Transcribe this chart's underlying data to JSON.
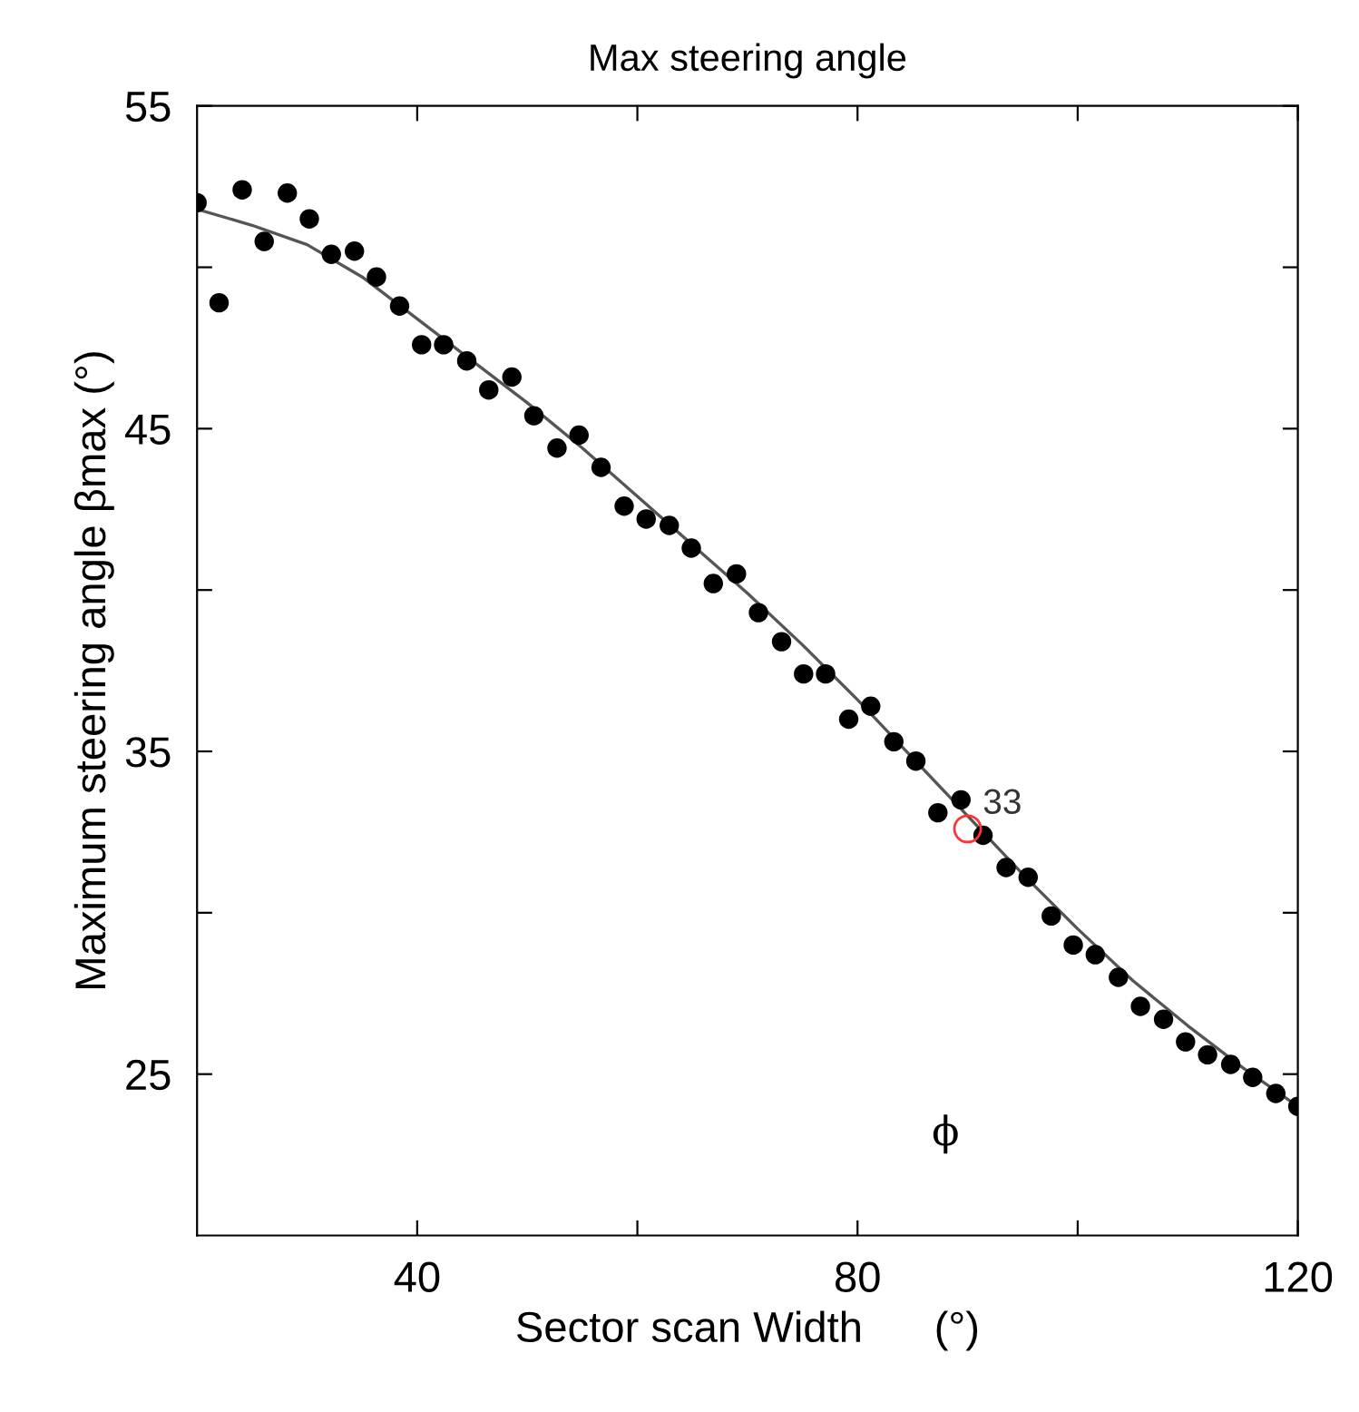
{
  "chart_data": {
    "type": "scatter",
    "title": "Max steering angle",
    "xlabel": "Sector scan Width      (°)",
    "ylabel": "Maximum steering angle βmax (°)",
    "xlim": [
      20,
      120
    ],
    "ylim": [
      20,
      55
    ],
    "xticks": [
      40,
      {
        "value": 60,
        "label": null
      },
      80,
      {
        "value": 100,
        "label": null
      },
      120
    ],
    "yticks": [
      25,
      {
        "value": 30,
        "label": null
      },
      35,
      {
        "value": 40,
        "label": null
      },
      45,
      {
        "value": 50,
        "label": null
      },
      55
    ],
    "grid": false,
    "legend": false,
    "series": [
      {
        "color": "#000000",
        "marker": "circle",
        "x": [
          20,
          22.0,
          24.1,
          26.1,
          28.2,
          30.2,
          32.2,
          34.3,
          36.3,
          38.4,
          40.4,
          42.4,
          44.5,
          46.5,
          48.6,
          50.6,
          52.7,
          54.7,
          56.7,
          58.8,
          60.8,
          62.9,
          64.9,
          66.9,
          69.0,
          71.0,
          73.1,
          75.1,
          77.1,
          79.2,
          81.2,
          83.3,
          85.3,
          87.3,
          89.4,
          91.4,
          93.5,
          95.5,
          97.6,
          99.6,
          101.6,
          103.7,
          105.7,
          107.8,
          109.8,
          111.8,
          113.9,
          115.9,
          118.0,
          120
        ],
        "values": [
          52.0,
          48.9,
          52.4,
          50.8,
          52.3,
          51.5,
          50.4,
          50.5,
          49.7,
          48.8,
          47.6,
          47.6,
          47.1,
          46.2,
          46.6,
          45.4,
          44.4,
          44.8,
          43.8,
          42.6,
          42.2,
          42.0,
          41.3,
          40.2,
          40.5,
          39.3,
          38.4,
          37.4,
          37.4,
          36.0,
          36.4,
          35.3,
          34.7,
          33.1,
          33.5,
          32.4,
          31.4,
          31.1,
          29.9,
          29.0,
          28.7,
          28.0,
          27.1,
          26.7,
          26.0,
          25.6,
          25.3,
          24.9,
          24.4,
          24.0
        ]
      },
      {
        "type": "line",
        "color": "#555555",
        "x": [
          20,
          25,
          30,
          35,
          40,
          45,
          50,
          55,
          60,
          65,
          70,
          75,
          80,
          85,
          90,
          95,
          100,
          105,
          110,
          115,
          120
        ],
        "values": [
          51.8,
          51.3,
          50.7,
          49.7,
          48.4,
          47.1,
          45.8,
          44.4,
          42.9,
          41.4,
          39.9,
          38.3,
          36.6,
          34.8,
          33.0,
          31.2,
          29.5,
          27.9,
          26.5,
          25.2,
          24.0
        ]
      },
      {
        "color": "#ff3333",
        "x": [
          90
        ],
        "values": [
          32.6
        ]
      }
    ],
    "annotations": [
      {
        "text": "33",
        "x": 90,
        "y": 32.6
      },
      "ϕ"
    ]
  }
}
